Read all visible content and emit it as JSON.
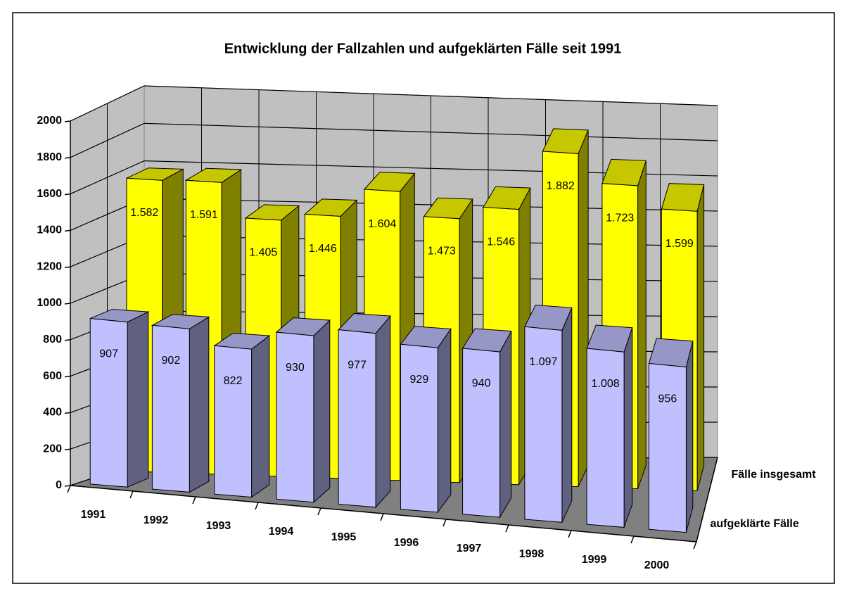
{
  "chart_data": {
    "type": "bar3d",
    "title": "Entwicklung der Fallzahlen und aufgeklärten Fälle seit 1991",
    "categories": [
      "1991",
      "1992",
      "1993",
      "1994",
      "1995",
      "1996",
      "1997",
      "1998",
      "1999",
      "2000"
    ],
    "series": [
      {
        "name": "aufgeklärte Fälle",
        "color": "#c0c0ff",
        "values": [
          907,
          902,
          822,
          930,
          977,
          929,
          940,
          1097,
          1008,
          956
        ],
        "value_labels": [
          "907",
          "902",
          "822",
          "930",
          "977",
          "929",
          "940",
          "1.097",
          "1.008",
          "956"
        ]
      },
      {
        "name": "Fälle insgesamt",
        "color": "#ffff00",
        "values": [
          1582,
          1591,
          1405,
          1446,
          1604,
          1473,
          1546,
          1882,
          1723,
          1599
        ],
        "value_labels": [
          "1.582",
          "1.591",
          "1.405",
          "1.446",
          "1.604",
          "1.473",
          "1.546",
          "1.882",
          "1.723",
          "1.599"
        ]
      }
    ],
    "ylim": [
      0,
      2000
    ],
    "yticks": [
      0,
      200,
      400,
      600,
      800,
      1000,
      1200,
      1400,
      1600,
      1800,
      2000
    ],
    "grid": true
  }
}
